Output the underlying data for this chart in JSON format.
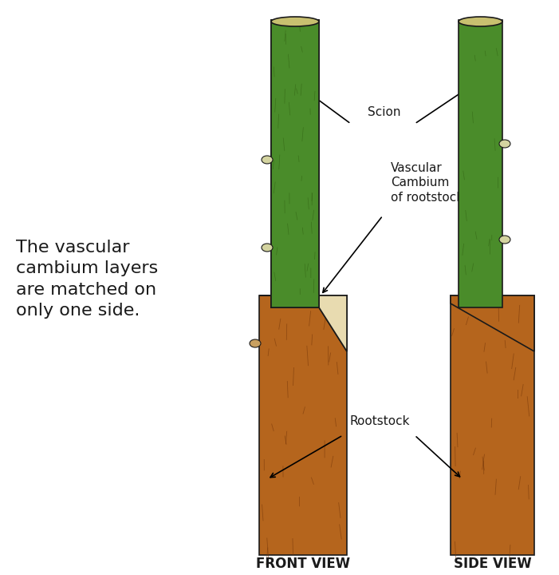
{
  "background_color": "#ffffff",
  "text_color": "#1a1a1a",
  "green_color": "#4a8c2a",
  "brown_color": "#b5651d",
  "cream_color": "#e8dbb0",
  "dark_outline": "#1a1a1a",
  "text_left": "The vascular\ncambium layers\nare matched on\nonly one side.",
  "label_scion": "Scion",
  "label_vascular": "Vascular\nCambium\nof rootstock",
  "label_rootstock": "Rootstock",
  "label_front": "FRONT VIEW",
  "label_side": "SIDE VIEW",
  "figsize": [
    7.01,
    7.2
  ],
  "dpi": 100
}
